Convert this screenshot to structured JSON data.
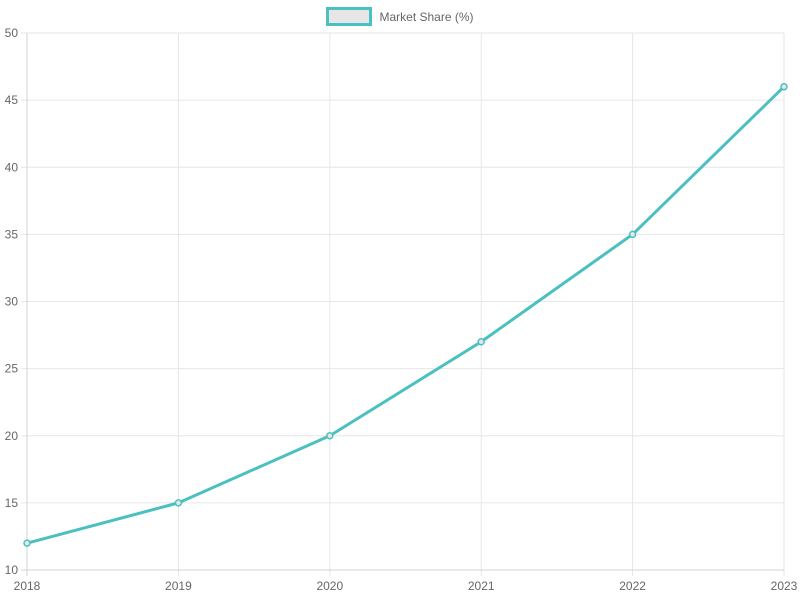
{
  "legend": {
    "label": "Market Share (%)"
  },
  "colors": {
    "line": "#4BC0C0",
    "point_fill": "#E6E6E6",
    "point_stroke": "#4BC0C0",
    "grid": "#E6E6E6",
    "axis_border": "#D3D3D3",
    "tick_text": "#666666",
    "background": "#FFFFFF",
    "legend_swatch_fill": "#E6E6E6"
  },
  "chart_data": {
    "type": "line",
    "title": "",
    "xlabel": "",
    "ylabel": "",
    "categories": [
      "2018",
      "2019",
      "2020",
      "2021",
      "2022",
      "2023"
    ],
    "series": [
      {
        "name": "Market Share (%)",
        "values": [
          12,
          15,
          20,
          27,
          35,
          46
        ]
      }
    ],
    "ylim": [
      10,
      50
    ],
    "y_ticks": [
      10,
      15,
      20,
      25,
      30,
      35,
      40,
      45,
      50
    ],
    "grid": true,
    "legend_position": "top"
  }
}
